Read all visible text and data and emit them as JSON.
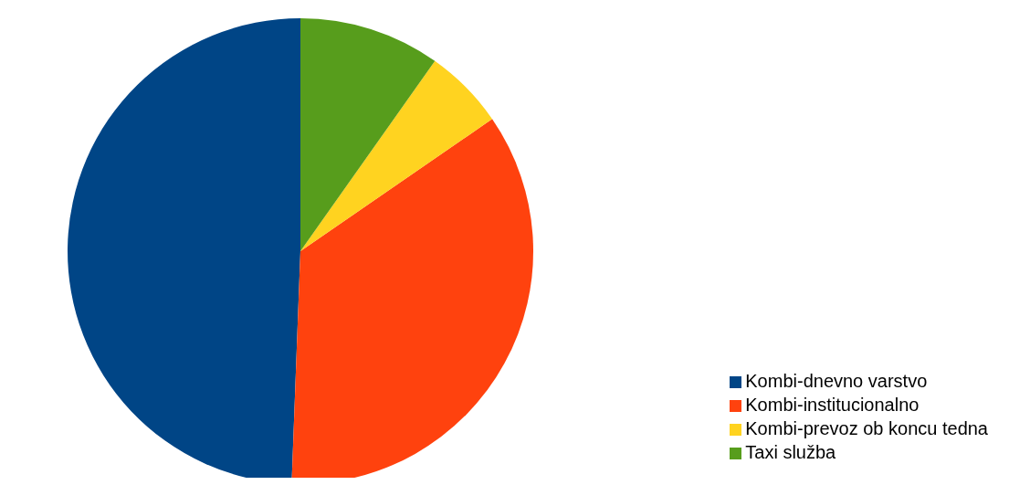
{
  "chart_data": {
    "type": "pie",
    "categories": [
      "Kombi-dnevno varstvo",
      "Kombi-institucionalno",
      "Kombi-prevoz ob koncu tedna",
      "Taxi služba"
    ],
    "values": [
      49.4,
      35.2,
      5.6,
      9.8
    ],
    "colors": [
      "#004586",
      "#ff420e",
      "#ffd320",
      "#579d1c"
    ],
    "legend": "bottom right"
  }
}
